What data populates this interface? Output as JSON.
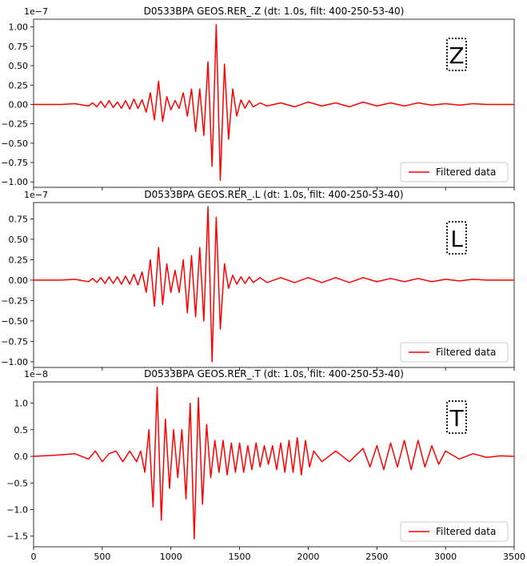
{
  "chart_data": [
    {
      "type": "line",
      "title": "D0533BPA GEOS.RER_.Z (dt: 1.0s, filt: 400-250-53-40)",
      "offset_label": "1e−7",
      "scale_exponent": -7,
      "xlim": [
        0,
        3500
      ],
      "ylim": [
        -1.07,
        1.1
      ],
      "yticks": [
        -1.0,
        -0.75,
        -0.5,
        -0.25,
        0.0,
        0.25,
        0.5,
        0.75,
        1.0
      ],
      "ytick_labels": [
        "−1.00",
        "−0.75",
        "−0.50",
        "−0.25",
        "0.00",
        "0.25",
        "0.50",
        "0.75",
        "1.00"
      ],
      "component_label": "Z",
      "legend": "bottom-right",
      "color": "#ff0000",
      "series": [
        {
          "name": "Filtered data",
          "x": [
            0,
            200,
            300,
            400,
            430,
            460,
            490,
            520,
            550,
            580,
            610,
            640,
            670,
            700,
            730,
            760,
            790,
            820,
            850,
            880,
            910,
            940,
            970,
            1000,
            1030,
            1060,
            1090,
            1120,
            1150,
            1180,
            1210,
            1240,
            1270,
            1300,
            1330,
            1360,
            1390,
            1420,
            1450,
            1480,
            1510,
            1540,
            1570,
            1600,
            1650,
            1700,
            1800,
            1900,
            2000,
            2100,
            2200,
            2300,
            2400,
            2500,
            2600,
            2700,
            2800,
            2900,
            3000,
            3100,
            3200,
            3300,
            3400,
            3500
          ],
          "y": [
            0,
            0,
            0.01,
            -0.02,
            0.02,
            -0.03,
            0.04,
            -0.04,
            0.05,
            -0.04,
            0.03,
            -0.05,
            0.05,
            -0.06,
            0.07,
            -0.05,
            0.06,
            -0.1,
            0.15,
            -0.2,
            0.3,
            -0.22,
            0.1,
            -0.07,
            0.05,
            -0.05,
            0.15,
            -0.15,
            0.2,
            -0.35,
            0.2,
            -0.4,
            0.55,
            -0.8,
            1.03,
            -0.98,
            0.52,
            -0.45,
            0.2,
            -0.15,
            0.06,
            -0.05,
            0.05,
            -0.03,
            0.02,
            -0.02,
            0.02,
            -0.03,
            0.03,
            -0.02,
            0.02,
            -0.03,
            0.03,
            -0.02,
            0.02,
            -0.02,
            0.02,
            -0.01,
            0.01,
            -0.01,
            0.01,
            0,
            0,
            0
          ]
        }
      ]
    },
    {
      "type": "line",
      "title": "D0533BPA GEOS.RER_.L (dt: 1.0s, filt: 400-250-53-40)",
      "offset_label": "1e−7",
      "scale_exponent": -7,
      "xlim": [
        0,
        3500
      ],
      "ylim": [
        -1.07,
        0.95
      ],
      "yticks": [
        -1.0,
        -0.75,
        -0.5,
        -0.25,
        0.0,
        0.25,
        0.5,
        0.75
      ],
      "ytick_labels": [
        "−1.00",
        "−0.75",
        "−0.50",
        "−0.25",
        "0.00",
        "0.25",
        "0.50",
        "0.75"
      ],
      "component_label": "L",
      "legend": "bottom-right",
      "color": "#ff0000",
      "series": [
        {
          "name": "Filtered data",
          "x": [
            0,
            200,
            300,
            400,
            430,
            460,
            490,
            520,
            550,
            580,
            610,
            640,
            670,
            700,
            730,
            760,
            790,
            820,
            850,
            880,
            910,
            940,
            970,
            1000,
            1030,
            1060,
            1090,
            1120,
            1150,
            1180,
            1210,
            1240,
            1270,
            1300,
            1330,
            1360,
            1390,
            1420,
            1450,
            1480,
            1510,
            1540,
            1570,
            1600,
            1650,
            1700,
            1800,
            1900,
            2000,
            2100,
            2200,
            2300,
            2400,
            2500,
            2600,
            2700,
            2800,
            2900,
            3000,
            3100,
            3200,
            3300,
            3400,
            3500
          ],
          "y": [
            0,
            0,
            0.01,
            -0.02,
            0.02,
            -0.03,
            0.03,
            -0.04,
            0.04,
            -0.04,
            0.04,
            -0.05,
            0.05,
            -0.05,
            0.07,
            -0.06,
            0.1,
            -0.15,
            0.25,
            -0.32,
            0.4,
            -0.3,
            0.2,
            -0.15,
            0.12,
            -0.15,
            0.25,
            -0.4,
            0.3,
            -0.45,
            0.4,
            -0.5,
            0.9,
            -1.0,
            0.77,
            -0.6,
            0.2,
            -0.1,
            0.06,
            -0.05,
            0.04,
            -0.04,
            0.04,
            -0.03,
            0.03,
            -0.03,
            0.03,
            -0.03,
            0.03,
            -0.03,
            0.03,
            -0.03,
            0.03,
            -0.02,
            0.02,
            -0.02,
            0.02,
            -0.02,
            0.01,
            -0.01,
            0.01,
            0,
            0,
            0
          ]
        }
      ]
    },
    {
      "type": "line",
      "title": "D0533BPA GEOS.RER_.T (dt: 1.0s, filt: 400-250-53-40)",
      "offset_label": "1e−8",
      "scale_exponent": -8,
      "xlim": [
        0,
        3500
      ],
      "ylim": [
        -1.7,
        1.4
      ],
      "yticks": [
        -1.5,
        -1.0,
        -0.5,
        0.0,
        0.5,
        1.0
      ],
      "ytick_labels": [
        "−1.5",
        "−1.0",
        "−0.5",
        "0.0",
        "0.5",
        "1.0"
      ],
      "xticks": [
        0,
        500,
        1000,
        1500,
        2000,
        2500,
        3000,
        3500
      ],
      "xtick_labels": [
        "0",
        "500",
        "1000",
        "1500",
        "2000",
        "2500",
        "3000",
        "3500"
      ],
      "component_label": "T",
      "legend": "bottom-right",
      "color": "#ff0000",
      "series": [
        {
          "name": "Filtered data",
          "x": [
            0,
            150,
            300,
            400,
            450,
            500,
            550,
            600,
            650,
            700,
            750,
            780,
            810,
            840,
            870,
            900,
            930,
            960,
            990,
            1020,
            1050,
            1080,
            1110,
            1140,
            1170,
            1200,
            1230,
            1260,
            1290,
            1320,
            1350,
            1380,
            1410,
            1440,
            1470,
            1500,
            1530,
            1560,
            1590,
            1620,
            1650,
            1680,
            1710,
            1740,
            1770,
            1800,
            1830,
            1860,
            1890,
            1920,
            1950,
            1980,
            2010,
            2040,
            2100,
            2200,
            2300,
            2400,
            2450,
            2500,
            2550,
            2600,
            2650,
            2700,
            2750,
            2800,
            2850,
            2900,
            2950,
            3000,
            3100,
            3200,
            3300,
            3400,
            3500
          ],
          "y": [
            0,
            0.02,
            0.05,
            -0.05,
            0.1,
            -0.1,
            0.05,
            0.1,
            -0.1,
            0.1,
            -0.1,
            0.1,
            -0.3,
            0.5,
            -0.95,
            1.3,
            -1.2,
            0.7,
            -0.6,
            0.5,
            -0.4,
            0.5,
            -0.8,
            1.0,
            -1.55,
            1.1,
            -0.9,
            0.6,
            -0.4,
            0.3,
            -0.3,
            0.3,
            -0.35,
            0.25,
            -0.3,
            0.25,
            -0.3,
            0.2,
            -0.25,
            0.25,
            -0.2,
            0.2,
            -0.15,
            0.2,
            -0.25,
            0.25,
            -0.3,
            0.3,
            -0.3,
            0.35,
            -0.35,
            0.3,
            -0.2,
            0.1,
            -0.1,
            0.1,
            -0.1,
            0.15,
            -0.2,
            0.2,
            -0.25,
            0.25,
            -0.2,
            0.3,
            -0.25,
            0.3,
            -0.2,
            0.2,
            -0.15,
            0.1,
            -0.05,
            0.05,
            -0.02,
            0.01,
            0
          ]
        }
      ]
    }
  ]
}
